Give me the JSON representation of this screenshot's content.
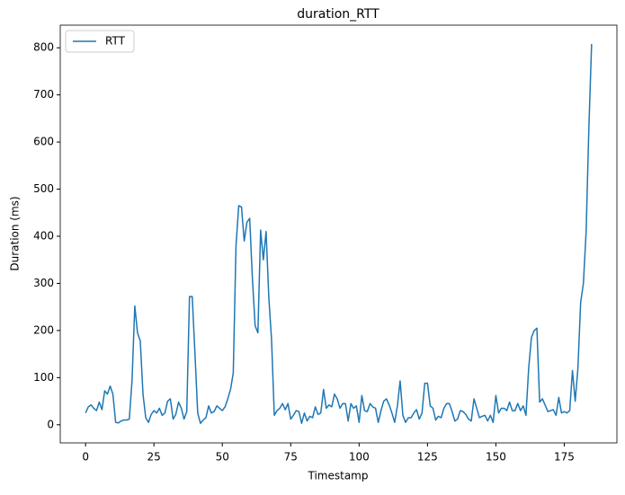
{
  "chart_data": {
    "type": "line",
    "title": "duration_RTT",
    "x_label": "Timestamp",
    "y_label": "Duration (ms)",
    "x": [
      0,
      1,
      2,
      3,
      4,
      5,
      6,
      7,
      8,
      9,
      10,
      11,
      12,
      13,
      14,
      15,
      16,
      17,
      18,
      19,
      20,
      21,
      22,
      23,
      24,
      25,
      26,
      27,
      28,
      29,
      30,
      31,
      32,
      33,
      34,
      35,
      36,
      37,
      38,
      39,
      40,
      41,
      42,
      43,
      44,
      45,
      46,
      47,
      48,
      49,
      50,
      51,
      52,
      53,
      54,
      55,
      56,
      57,
      58,
      59,
      60,
      61,
      62,
      63,
      64,
      65,
      66,
      67,
      68,
      69,
      70,
      71,
      72,
      73,
      74,
      75,
      76,
      77,
      78,
      79,
      80,
      81,
      82,
      83,
      84,
      85,
      86,
      87,
      88,
      89,
      90,
      91,
      92,
      93,
      94,
      95,
      96,
      97,
      98,
      99,
      100,
      101,
      102,
      103,
      104,
      105,
      106,
      107,
      108,
      109,
      110,
      111,
      112,
      113,
      114,
      115,
      116,
      117,
      118,
      119,
      120,
      121,
      122,
      123,
      124,
      125,
      126,
      127,
      128,
      129,
      130,
      131,
      132,
      133,
      134,
      135,
      136,
      137,
      138,
      139,
      140,
      141,
      142,
      143,
      144,
      145,
      146,
      147,
      148,
      149,
      150,
      151,
      152,
      153,
      154,
      155,
      156,
      157,
      158,
      159,
      160,
      161,
      162,
      163,
      164,
      165,
      166,
      167,
      168,
      169,
      170,
      171,
      172,
      173,
      174,
      175,
      176,
      177,
      178,
      179,
      180,
      181,
      182,
      183,
      184,
      185
    ],
    "series": [
      {
        "name": "RTT",
        "color": "#1f77b4",
        "values": [
          25,
          38,
          42,
          35,
          30,
          48,
          32,
          72,
          65,
          82,
          65,
          5,
          4,
          8,
          10,
          10,
          12,
          95,
          252,
          195,
          178,
          65,
          15,
          5,
          22,
          30,
          25,
          35,
          20,
          25,
          50,
          55,
          12,
          22,
          48,
          35,
          12,
          28,
          272,
          272,
          150,
          25,
          3,
          10,
          15,
          40,
          25,
          28,
          40,
          35,
          30,
          38,
          55,
          75,
          110,
          380,
          465,
          462,
          390,
          430,
          438,
          310,
          210,
          195,
          413,
          350,
          410,
          270,
          180,
          20,
          30,
          35,
          45,
          32,
          45,
          12,
          20,
          30,
          28,
          3,
          25,
          8,
          18,
          15,
          38,
          22,
          25,
          75,
          35,
          42,
          38,
          65,
          55,
          35,
          45,
          45,
          8,
          45,
          35,
          40,
          5,
          62,
          30,
          28,
          45,
          38,
          35,
          5,
          30,
          50,
          55,
          42,
          25,
          5,
          40,
          93,
          20,
          5,
          15,
          15,
          25,
          32,
          12,
          25,
          88,
          88,
          40,
          35,
          10,
          18,
          15,
          35,
          45,
          45,
          28,
          8,
          12,
          30,
          28,
          22,
          12,
          8,
          55,
          35,
          15,
          18,
          20,
          8,
          20,
          5,
          62,
          25,
          35,
          35,
          30,
          48,
          30,
          30,
          45,
          30,
          40,
          20,
          120,
          185,
          200,
          205,
          48,
          55,
          42,
          28,
          30,
          32,
          20,
          58,
          25,
          28,
          25,
          30,
          115,
          50,
          120,
          260,
          300,
          410,
          630,
          808
        ]
      }
    ],
    "xlim": [
      -9.25,
      194.25
    ],
    "ylim": [
      -38.5,
      848
    ],
    "xticks": [
      0,
      25,
      50,
      75,
      100,
      125,
      150,
      175
    ],
    "yticks": [
      0,
      100,
      200,
      300,
      400,
      500,
      600,
      700,
      800
    ],
    "legend": "upper left"
  }
}
